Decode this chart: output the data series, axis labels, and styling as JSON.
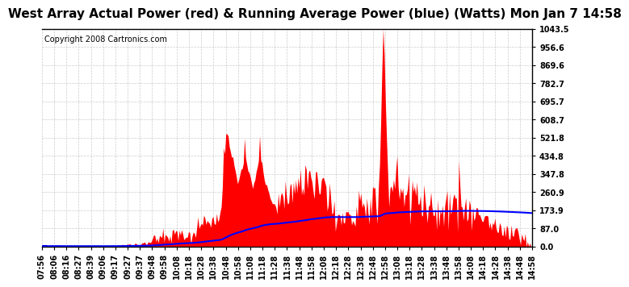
{
  "title": "West Array Actual Power (red) & Running Average Power (blue) (Watts) Mon Jan 7 14:58",
  "copyright": "Copyright 2008 Cartronics.com",
  "ylim": [
    0,
    1043.5
  ],
  "yticks": [
    0.0,
    87.0,
    173.9,
    260.9,
    347.8,
    434.8,
    521.8,
    608.7,
    695.7,
    782.7,
    869.6,
    956.6,
    1043.5
  ],
  "ytick_labels": [
    "0.0",
    "87.0",
    "173.9",
    "260.9",
    "347.8",
    "434.8",
    "521.8",
    "608.7",
    "695.7",
    "782.7",
    "869.6",
    "956.6",
    "1043.5"
  ],
  "xtick_labels": [
    "07:56",
    "08:06",
    "08:16",
    "08:27",
    "08:39",
    "09:06",
    "09:17",
    "09:27",
    "09:37",
    "09:48",
    "09:58",
    "10:08",
    "10:18",
    "10:28",
    "10:38",
    "10:48",
    "10:58",
    "11:08",
    "11:18",
    "11:28",
    "11:38",
    "11:48",
    "11:58",
    "12:08",
    "12:18",
    "12:28",
    "12:38",
    "12:48",
    "12:58",
    "13:08",
    "13:18",
    "13:28",
    "13:38",
    "13:48",
    "13:58",
    "14:08",
    "14:18",
    "14:28",
    "14:38",
    "14:48",
    "14:58"
  ],
  "bg_color": "#ffffff",
  "grid_color": "#cccccc",
  "actual_color": "#ff0000",
  "average_color": "#0000ff",
  "title_fontsize": 11,
  "copyright_fontsize": 7,
  "tick_fontsize": 7
}
